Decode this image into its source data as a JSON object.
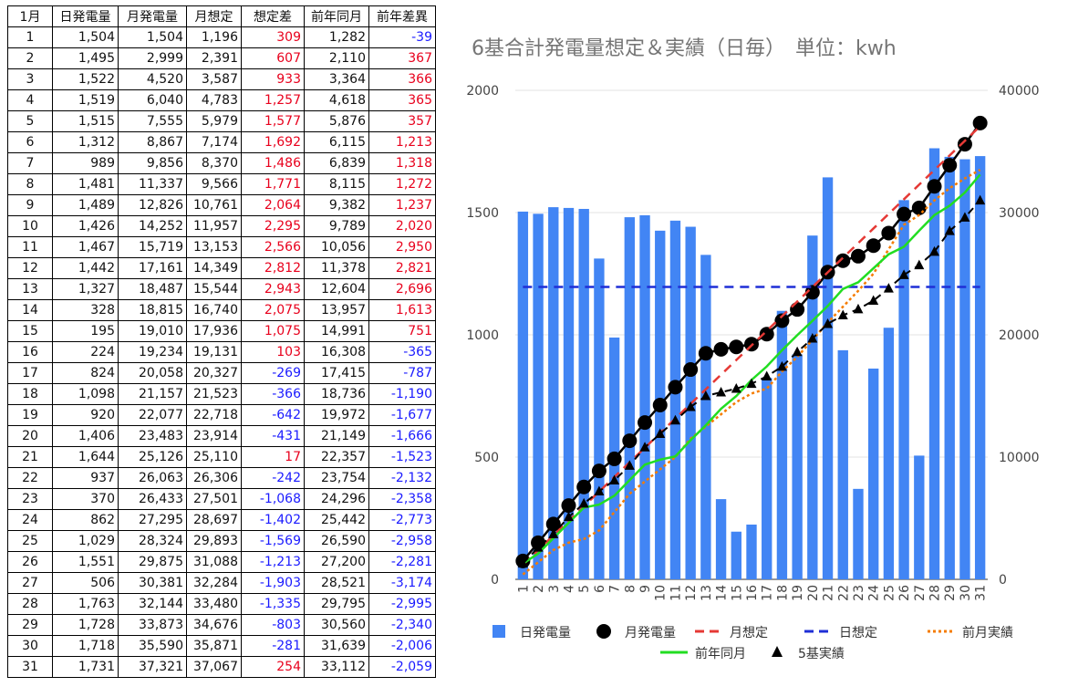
{
  "table": {
    "headers": [
      "1月",
      "日発電量",
      "月発電量",
      "月想定",
      "想定差",
      "前年同月",
      "前年差異"
    ],
    "rows": [
      [
        "1",
        "1,504",
        "1,504",
        "1,196",
        "309",
        "1,282",
        "-39"
      ],
      [
        "2",
        "1,495",
        "2,999",
        "2,391",
        "607",
        "2,110",
        "367"
      ],
      [
        "3",
        "1,522",
        "4,520",
        "3,587",
        "933",
        "3,364",
        "366"
      ],
      [
        "4",
        "1,519",
        "6,040",
        "4,783",
        "1,257",
        "4,618",
        "365"
      ],
      [
        "5",
        "1,515",
        "7,555",
        "5,979",
        "1,577",
        "5,876",
        "357"
      ],
      [
        "6",
        "1,312",
        "8,867",
        "7,174",
        "1,692",
        "6,115",
        "1,213"
      ],
      [
        "7",
        "989",
        "9,856",
        "8,370",
        "1,486",
        "6,839",
        "1,318"
      ],
      [
        "8",
        "1,481",
        "11,337",
        "9,566",
        "1,771",
        "8,115",
        "1,272"
      ],
      [
        "9",
        "1,489",
        "12,826",
        "10,761",
        "2,064",
        "9,382",
        "1,237"
      ],
      [
        "10",
        "1,426",
        "14,252",
        "11,957",
        "2,295",
        "9,789",
        "2,020"
      ],
      [
        "11",
        "1,467",
        "15,719",
        "13,153",
        "2,566",
        "10,056",
        "2,950"
      ],
      [
        "12",
        "1,442",
        "17,161",
        "14,349",
        "2,812",
        "11,378",
        "2,821"
      ],
      [
        "13",
        "1,327",
        "18,487",
        "15,544",
        "2,943",
        "12,604",
        "2,696"
      ],
      [
        "14",
        "328",
        "18,815",
        "16,740",
        "2,075",
        "13,957",
        "1,613"
      ],
      [
        "15",
        "195",
        "19,010",
        "17,936",
        "1,075",
        "14,991",
        "751"
      ],
      [
        "16",
        "224",
        "19,234",
        "19,131",
        "103",
        "16,308",
        "-365"
      ],
      [
        "17",
        "824",
        "20,058",
        "20,327",
        "-269",
        "17,415",
        "-787"
      ],
      [
        "18",
        "1,098",
        "21,157",
        "21,523",
        "-366",
        "18,736",
        "-1,190"
      ],
      [
        "19",
        "920",
        "22,077",
        "22,718",
        "-642",
        "19,972",
        "-1,677"
      ],
      [
        "20",
        "1,406",
        "23,483",
        "23,914",
        "-431",
        "21,149",
        "-1,666"
      ],
      [
        "21",
        "1,644",
        "25,126",
        "25,110",
        "17",
        "22,357",
        "-1,523"
      ],
      [
        "22",
        "937",
        "26,063",
        "26,306",
        "-242",
        "23,754",
        "-2,132"
      ],
      [
        "23",
        "370",
        "26,433",
        "27,501",
        "-1,068",
        "24,296",
        "-2,358"
      ],
      [
        "24",
        "862",
        "27,295",
        "28,697",
        "-1,402",
        "25,442",
        "-2,773"
      ],
      [
        "25",
        "1,029",
        "28,324",
        "29,893",
        "-1,569",
        "26,590",
        "-2,958"
      ],
      [
        "26",
        "1,551",
        "29,875",
        "31,088",
        "-1,213",
        "27,200",
        "-2,281"
      ],
      [
        "27",
        "506",
        "30,381",
        "32,284",
        "-1,903",
        "28,521",
        "-3,174"
      ],
      [
        "28",
        "1,763",
        "32,144",
        "33,480",
        "-1,335",
        "29,795",
        "-2,995"
      ],
      [
        "29",
        "1,728",
        "33,873",
        "34,676",
        "-803",
        "30,560",
        "-2,340"
      ],
      [
        "30",
        "1,718",
        "35,590",
        "35,871",
        "-281",
        "31,639",
        "-2,006"
      ],
      [
        "31",
        "1,731",
        "37,321",
        "37,067",
        "254",
        "33,112",
        "-2,059"
      ]
    ],
    "positive_color": "#e8001c",
    "negative_color": "#1a1aff"
  },
  "chart_data": {
    "type": "bar",
    "title": "6基合計発電量想定＆実績（日毎）　単位：kwh",
    "categories": [
      "1",
      "2",
      "3",
      "4",
      "5",
      "6",
      "7",
      "8",
      "9",
      "10",
      "11",
      "12",
      "13",
      "14",
      "15",
      "16",
      "17",
      "18",
      "19",
      "20",
      "21",
      "22",
      "23",
      "24",
      "25",
      "26",
      "27",
      "28",
      "29",
      "30",
      "31"
    ],
    "left_axis": {
      "ylim": [
        0,
        2000
      ],
      "ticks": [
        "0",
        "500",
        "1000",
        "1500",
        "2000"
      ]
    },
    "right_axis": {
      "ylim": [
        0,
        40000
      ],
      "ticks": [
        "0",
        "10000",
        "20000",
        "30000",
        "40000"
      ]
    },
    "series": [
      {
        "name": "日発電量",
        "kind": "bar",
        "axis": "left",
        "color": "#4285f4",
        "values": [
          1504,
          1495,
          1522,
          1519,
          1515,
          1312,
          989,
          1481,
          1489,
          1426,
          1467,
          1442,
          1327,
          328,
          195,
          224,
          824,
          1098,
          920,
          1406,
          1644,
          937,
          370,
          862,
          1029,
          1551,
          506,
          1763,
          1728,
          1718,
          1731
        ]
      },
      {
        "name": "月発電量",
        "kind": "line-marker",
        "axis": "right",
        "color": "#000000",
        "values": [
          1504,
          2999,
          4520,
          6040,
          7555,
          8867,
          9856,
          11337,
          12826,
          14252,
          15719,
          17161,
          18487,
          18815,
          19010,
          19234,
          20058,
          21157,
          22077,
          23483,
          25126,
          26063,
          26433,
          27295,
          28324,
          29875,
          30381,
          32144,
          33873,
          35590,
          37321
        ]
      },
      {
        "name": "月想定",
        "kind": "dashed",
        "axis": "right",
        "color": "#e53935",
        "values": [
          1196,
          2391,
          3587,
          4783,
          5979,
          7174,
          8370,
          9566,
          10761,
          11957,
          13153,
          14349,
          15544,
          16740,
          17936,
          19131,
          20327,
          21523,
          22718,
          23914,
          25110,
          26306,
          27501,
          28697,
          29893,
          31088,
          32284,
          33480,
          34676,
          35871,
          37067
        ]
      },
      {
        "name": "日想定",
        "kind": "dashed",
        "axis": "left",
        "color": "#1f2fd6",
        "values": [
          1196,
          1196,
          1196,
          1196,
          1196,
          1196,
          1196,
          1196,
          1196,
          1196,
          1196,
          1196,
          1196,
          1196,
          1196,
          1196,
          1196,
          1196,
          1196,
          1196,
          1196,
          1196,
          1196,
          1196,
          1196,
          1196,
          1196,
          1196,
          1196,
          1196,
          1196
        ]
      },
      {
        "name": "前月実績",
        "kind": "dotted",
        "axis": "right",
        "color": "#f57c00",
        "values": [
          400,
          1400,
          2400,
          3000,
          3300,
          4000,
          5500,
          7000,
          8000,
          9000,
          10000,
          11500,
          12500,
          13500,
          14500,
          15200,
          15600,
          17000,
          18200,
          19600,
          21000,
          22300,
          23600,
          25000,
          27000,
          29000,
          29800,
          31000,
          32000,
          32800,
          33500
        ]
      },
      {
        "name": "前年同月",
        "kind": "line",
        "axis": "right",
        "color": "#22dd22",
        "values": [
          1282,
          2110,
          3364,
          4618,
          5876,
          6115,
          6839,
          8115,
          9382,
          9789,
          10056,
          11378,
          12604,
          13957,
          14991,
          16308,
          17415,
          18736,
          19972,
          21149,
          22357,
          23754,
          24296,
          25442,
          26590,
          27200,
          28521,
          29795,
          30560,
          31639,
          33112
        ]
      },
      {
        "name": "5基実績",
        "kind": "triangle-dashed",
        "axis": "right",
        "color": "#000000",
        "values": [
          1300,
          2600,
          3700,
          5100,
          6200,
          7200,
          8100,
          9300,
          10800,
          11900,
          13000,
          14100,
          15000,
          15300,
          15600,
          16000,
          16600,
          17400,
          18600,
          19700,
          20900,
          21600,
          22100,
          22800,
          23800,
          24900,
          25700,
          26800,
          28500,
          29600,
          31000
        ]
      }
    ]
  }
}
